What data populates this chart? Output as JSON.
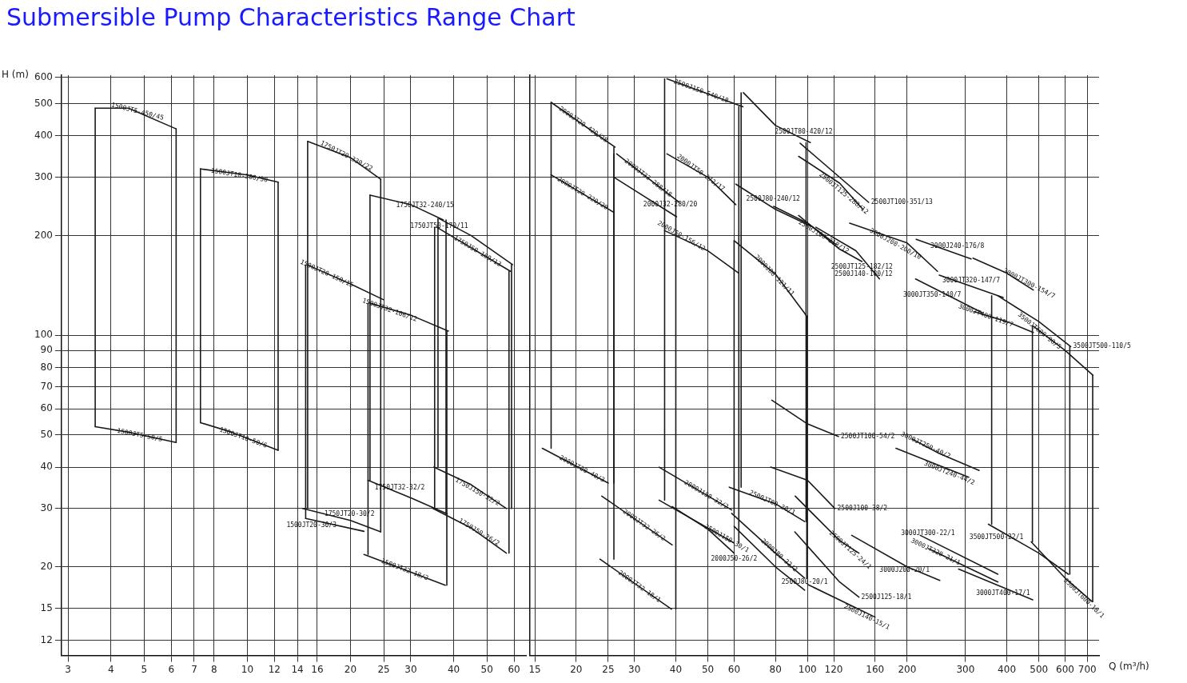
{
  "chart_data": [
    {
      "type": "line",
      "title": "Submersible Pump Characteristics Range Chart",
      "ylabel": "H (m)",
      "color": "#1a1a1a",
      "log": "xy",
      "grid": true,
      "legend": false,
      "marker": "none",
      "line_style": "solid",
      "xlim": [
        2.87,
        65
      ],
      "xticks": [
        3,
        4,
        5,
        6,
        7,
        8,
        10,
        12,
        14,
        16,
        20,
        25,
        30,
        40,
        50,
        60
      ],
      "ylim": [
        10.8,
        610
      ],
      "yticks": [
        12,
        15,
        20,
        30,
        40,
        50,
        60,
        70,
        80,
        90,
        100,
        200,
        300,
        400,
        500,
        600
      ],
      "series": [
        {
          "name": "1500JT5-450/45",
          "x": [
            3.6,
            4.5,
            6.2
          ],
          "values": [
            485,
            485,
            420
          ]
        },
        {
          "name": "1500JT5-50/5",
          "x": [
            3.6,
            4.5,
            6.2
          ],
          "values": [
            53,
            51,
            47.5
          ]
        },
        {
          "name": "1500JT10-300/30",
          "x": [
            7.3,
            10,
            12.3
          ],
          "values": [
            318,
            305,
            290
          ]
        },
        {
          "name": "1500JT10-50/6",
          "x": [
            7.3,
            9,
            12.3
          ],
          "values": [
            54.5,
            51,
            45
          ]
        },
        {
          "name": "1750JT20-330/22",
          "x": [
            15,
            20,
            24.5
          ],
          "values": [
            385,
            344,
            296
          ]
        },
        {
          "name": "1750JT20-30/2",
          "x": [
            14.5,
            20,
            24.5
          ],
          "values": [
            30,
            27.6,
            25.5
          ]
        },
        {
          "name": "1500JT20-150/15",
          "x": [
            15,
            20,
            25
          ],
          "values": [
            163,
            143,
            128
          ]
        },
        {
          "name": "1500JT20-30/3",
          "x": [
            14.8,
            21.9
          ],
          "values": [
            28,
            25.6
          ]
        },
        {
          "name": "1750JT32-240/15",
          "x": [
            22.8,
            30,
            37.3
          ],
          "values": [
            265,
            248,
            223
          ]
        },
        {
          "name": "1750JT32-32/2",
          "x": [
            22.5,
            30,
            38.3
          ],
          "values": [
            36.5,
            32.3,
            28.9
          ]
        },
        {
          "name": "1500JT32-106/12",
          "x": [
            22.8,
            30,
            38.6
          ],
          "values": [
            125,
            115,
            103
          ]
        },
        {
          "name": "1500JT32-18/2",
          "x": [
            21.9,
            37.8
          ],
          "values": [
            21.8,
            17.6
          ]
        },
        {
          "name": "1750JT50-170/11",
          "x": [
            36.3,
            45,
            59.4
          ],
          "values": [
            225,
            200,
            163.5
          ]
        },
        {
          "name": "1750J50-169/13",
          "x": [
            35.7,
            58.6
          ],
          "values": [
            212,
            156
          ]
        },
        {
          "name": "1750J150-32/2",
          "x": [
            35,
            45,
            57
          ],
          "values": [
            40,
            35.4,
            30
          ]
        },
        {
          "name": "1750J50-26/2",
          "x": [
            34.8,
            45,
            57
          ],
          "values": [
            30,
            26.2,
            22
          ]
        },
        {
          "x": [
            3.6,
            3.6
          ],
          "values": [
            485,
            53
          ]
        },
        {
          "x": [
            6.2,
            6.2
          ],
          "values": [
            420,
            47.5
          ]
        },
        {
          "x": [
            7.3,
            7.3
          ],
          "values": [
            318,
            54.5
          ]
        },
        {
          "x": [
            12.3,
            12.3
          ],
          "values": [
            290,
            45
          ]
        },
        {
          "x": [
            15,
            15
          ],
          "values": [
            385,
            30
          ]
        },
        {
          "x": [
            24.5,
            24.5
          ],
          "values": [
            296,
            25.5
          ]
        },
        {
          "x": [
            14.8,
            14.8
          ],
          "values": [
            163,
            28
          ]
        },
        {
          "x": [
            22.8,
            22.8
          ],
          "values": [
            265,
            36.5
          ]
        },
        {
          "x": [
            38,
            38
          ],
          "values": [
            223,
            28.9
          ]
        },
        {
          "x": [
            22.5,
            22.5
          ],
          "values": [
            125,
            21.8
          ]
        },
        {
          "x": [
            38.2,
            38.2
          ],
          "values": [
            103,
            17.6
          ]
        },
        {
          "x": [
            36,
            36
          ],
          "values": [
            225,
            40
          ]
        },
        {
          "x": [
            59,
            59
          ],
          "values": [
            163.5,
            30
          ]
        },
        {
          "x": [
            35.2,
            35.2
          ],
          "values": [
            212,
            30
          ]
        },
        {
          "x": [
            58,
            58
          ],
          "values": [
            156,
            22
          ]
        }
      ]
    },
    {
      "type": "line",
      "xlabel": "Q (m³/h)",
      "color": "#1a1a1a",
      "log": "xy",
      "grid": true,
      "legend": false,
      "marker": "none",
      "line_style": "solid",
      "tick_labels": "x",
      "xlim": [
        14.5,
        760
      ],
      "xticks": [
        15,
        20,
        25,
        30,
        40,
        50,
        60,
        80,
        100,
        120,
        160,
        200,
        300,
        400,
        500,
        600,
        700
      ],
      "ylim": [
        10.8,
        610
      ],
      "yticks": [
        12,
        15,
        20,
        30,
        40,
        50,
        60,
        70,
        80,
        90,
        100,
        200,
        300,
        400,
        500,
        600
      ],
      "series": [
        {
          "name": "2000JT20-420/28",
          "x": [
            16.8,
            26.2
          ],
          "values": [
            505,
            370
          ]
        },
        {
          "name": "2000JT20-220/20",
          "x": [
            16.8,
            26
          ],
          "values": [
            305,
            235
          ]
        },
        {
          "name": "2000JT20-40/3",
          "x": [
            15.8,
            25
          ],
          "values": [
            45.6,
            35.8
          ]
        },
        {
          "name": "2000JT32-288/18",
          "x": [
            26.5,
            41
          ],
          "values": [
            353,
            252
          ]
        },
        {
          "name": "2000J32-280/20",
          "x": [
            26,
            40.2
          ],
          "values": [
            300,
            228
          ]
        },
        {
          "name": "2000JT32-26/2",
          "x": [
            23.9,
            39
          ],
          "values": [
            32.7,
            23.3
          ]
        },
        {
          "name": "2000JT32-18/1",
          "x": [
            23.6,
            38.8
          ],
          "values": [
            21.1,
            14.9
          ]
        },
        {
          "name": "2500J150-540/18",
          "x": [
            37.6,
            63.8
          ],
          "values": [
            595,
            490
          ]
        },
        {
          "name": "2500JT80-420/12",
          "x": [
            64,
            80,
            102
          ],
          "values": [
            540,
            430,
            382
          ]
        },
        {
          "name": "2500JT100-351/13",
          "x": [
            95,
            153
          ],
          "values": [
            380,
            252
          ]
        },
        {
          "name": "2500JT125-288/12",
          "x": [
            94,
            125,
            147
          ],
          "values": [
            347,
            288,
            240
          ]
        },
        {
          "name": "2500JT125-182/12",
          "x": [
            94,
            125,
            146
          ],
          "values": [
            230,
            182,
            167
          ]
        },
        {
          "name": "2500J80-240/12",
          "x": [
            60.7,
            80,
            102
          ],
          "values": [
            286,
            240,
            214
          ]
        },
        {
          "name": "2500J100-218/12",
          "x": [
            79,
            100,
            122
          ],
          "values": [
            245,
            218,
            188
          ]
        },
        {
          "name": "2500J140-180/12",
          "x": [
            106,
            140,
            165
          ],
          "values": [
            212,
            180,
            148
          ]
        },
        {
          "name": "2000J50-156/12",
          "x": [
            37,
            50,
            62
          ],
          "values": [
            207,
            180,
            154
          ]
        },
        {
          "name": "2000JT50-272/17",
          "x": [
            37.6,
            50,
            60.7
          ],
          "values": [
            353,
            300,
            248
          ]
        },
        {
          "name": "2000J80-121/11",
          "x": [
            60,
            80,
            100
          ],
          "values": [
            193,
            153,
            113.5
          ]
        },
        {
          "name": "2000J150-32/2",
          "x": [
            35.6,
            59
          ],
          "values": [
            40,
            29.7
          ]
        },
        {
          "name": "2500J150-30/1",
          "x": [
            35.6,
            60
          ],
          "values": [
            31.8,
            23.6
          ]
        },
        {
          "name": "2000J50-26/2",
          "x": [
            39,
            50,
            60
          ],
          "values": [
            30.4,
            26,
            22
          ]
        },
        {
          "name": "2500JT80-30/1",
          "x": [
            58,
            80,
            98
          ],
          "values": [
            34.8,
            31,
            27.4
          ]
        },
        {
          "name": "2000J80-22/2",
          "x": [
            59,
            80,
            98
          ],
          "values": [
            29,
            22,
            18.5
          ]
        },
        {
          "name": "2500J80-20/1",
          "x": [
            60,
            80,
            98
          ],
          "values": [
            26.5,
            20,
            17
          ]
        },
        {
          "name": "2500JT100-54/2",
          "x": [
            78,
            100,
            124
          ],
          "values": [
            63.7,
            54,
            49.5
          ]
        },
        {
          "name": "2500J100-38/2",
          "x": [
            77.4,
            100,
            121
          ],
          "values": [
            40,
            36.5,
            30
          ]
        },
        {
          "name": "2500JT125-24/1",
          "x": [
            91.8,
            125,
            143
          ],
          "values": [
            32.7,
            24,
            22
          ]
        },
        {
          "name": "2500J125-18/1",
          "x": [
            91.5,
            125,
            143
          ],
          "values": [
            25.5,
            18,
            16.2
          ]
        },
        {
          "name": "2500J140-15/1",
          "x": [
            100,
            160
          ],
          "values": [
            17.7,
            14.1
          ]
        },
        {
          "name": "3000J200-20/1",
          "x": [
            136,
            200,
            251
          ],
          "values": [
            24.9,
            20,
            18.2
          ]
        },
        {
          "name": "3000J200-200/10",
          "x": [
            134,
            200,
            247
          ],
          "values": [
            218,
            190,
            156
          ]
        },
        {
          "name": "3000J240-176/8",
          "x": [
            213,
            312
          ],
          "values": [
            195,
            170
          ]
        },
        {
          "name": "3000JT300-154/7",
          "x": [
            316,
            400,
            481
          ],
          "values": [
            171,
            154,
            137
          ]
        },
        {
          "name": "3000JT320-147/7",
          "x": [
            250,
            390
          ],
          "values": [
            152,
            130
          ]
        },
        {
          "name": "3000JT350-140/7",
          "x": [
            212,
            337
          ],
          "values": [
            148,
            117
          ]
        },
        {
          "name": "3000JT400-119/7",
          "x": [
            318,
            400,
            481
          ],
          "values": [
            118,
            110,
            102
          ]
        },
        {
          "name": "3500JT500-110/5",
          "x": [
            376,
            500,
            624
          ],
          "values": [
            131.6,
            110,
            92.5
          ]
        },
        {
          "name": "3500JT600-90/5",
          "x": [
            481,
            600,
            728
          ],
          "values": [
            106.6,
            90,
            75.8
          ]
        },
        {
          "name": "3000JT250-40/2",
          "x": [
            207,
            250,
            330
          ],
          "values": [
            48.6,
            44,
            39.1
          ]
        },
        {
          "name": "3000JT240-44/2",
          "x": [
            185,
            307
          ],
          "values": [
            45.6,
            37.3
          ]
        },
        {
          "name": "3000JT300-22/1",
          "x": [
            219,
            376
          ],
          "values": [
            24.9,
            19
          ]
        },
        {
          "name": "3000JT320-21/1",
          "x": [
            232,
            376
          ],
          "values": [
            22.7,
            18
          ]
        },
        {
          "name": "3000JT400-17/1",
          "x": [
            286,
            479
          ],
          "values": [
            19.7,
            15.9
          ]
        },
        {
          "name": "3500JT500-22/1",
          "x": [
            352,
            500,
            614
          ],
          "values": [
            26.9,
            22,
            19
          ]
        },
        {
          "name": "3500JT600-18/1",
          "x": [
            474,
            600,
            725
          ],
          "values": [
            23.8,
            18.5,
            15.7
          ]
        },
        {
          "x": [
            16.8,
            16.8
          ],
          "values": [
            505,
            45.6
          ]
        },
        {
          "x": [
            26,
            26
          ],
          "values": [
            370,
            35.8
          ]
        },
        {
          "x": [
            26,
            26
          ],
          "values": [
            353,
            21.1
          ]
        },
        {
          "x": [
            40,
            40
          ],
          "values": [
            252,
            14.9
          ]
        },
        {
          "x": [
            37,
            37
          ],
          "values": [
            595,
            31.8
          ]
        },
        {
          "x": [
            62,
            62
          ],
          "values": [
            490,
            23.6
          ]
        },
        {
          "x": [
            63,
            63
          ],
          "values": [
            540,
            34.8
          ]
        },
        {
          "x": [
            99,
            99
          ],
          "values": [
            382,
            27.4
          ]
        },
        {
          "x": [
            60,
            60
          ],
          "values": [
            193,
            29
          ]
        },
        {
          "x": [
            99.5,
            99.5
          ],
          "values": [
            113.5,
            18.5
          ]
        },
        {
          "x": [
            360,
            360
          ],
          "values": [
            131.6,
            26.9
          ]
        },
        {
          "x": [
            620,
            620
          ],
          "values": [
            92.5,
            19
          ]
        },
        {
          "x": [
            478,
            478
          ],
          "values": [
            106.6,
            23.8
          ]
        },
        {
          "x": [
            727,
            727
          ],
          "values": [
            75.8,
            15.7
          ]
        }
      ]
    }
  ]
}
